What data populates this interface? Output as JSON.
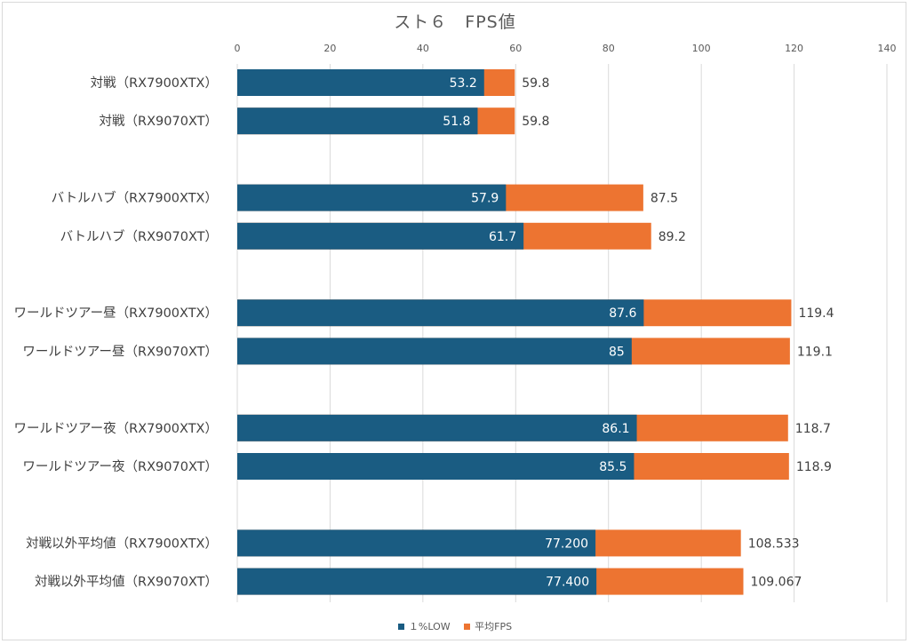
{
  "chart_data": {
    "type": "bar",
    "orientation": "horizontal",
    "stacked": false,
    "overlapped": true,
    "title": "スト６　FPS値",
    "xlabel": "",
    "ylabel": "",
    "xlim": [
      0,
      140
    ],
    "x_ticks": [
      "0",
      "20",
      "40",
      "60",
      "80",
      "100",
      "120",
      "140"
    ],
    "x_tick_values": [
      0,
      20,
      40,
      60,
      80,
      100,
      120,
      140
    ],
    "grid": true,
    "legend_position": "bottom",
    "categories": [
      "対戦（RX7900XTX）",
      "対戦（RX9070XT）",
      "",
      "バトルハブ（RX7900XTX）",
      "バトルハブ（RX9070XT）",
      "",
      "ワールドツアー昼（RX7900XTX）",
      "ワールドツアー昼（RX9070XT）",
      "",
      "ワールドツアー夜（RX7900XTX）",
      "ワールドツアー夜（RX9070XT）",
      "",
      "対戦以外平均値（RX7900XTX）",
      "対戦以外平均値（RX9070XT）"
    ],
    "series": [
      {
        "name": "平均FPS",
        "color": "#ED7431",
        "values": [
          59.8,
          59.8,
          null,
          87.5,
          89.2,
          null,
          119.4,
          119.1,
          null,
          118.7,
          118.9,
          null,
          108.533,
          109.067
        ],
        "labels": [
          "59.8",
          "59.8",
          "",
          "87.5",
          "89.2",
          "",
          "119.4",
          "119.1",
          "",
          "118.7",
          "118.9",
          "",
          "108.533",
          "109.067"
        ]
      },
      {
        "name": "１%LOW",
        "color": "#1A5C82",
        "values": [
          53.2,
          51.8,
          null,
          57.9,
          61.7,
          null,
          87.6,
          85,
          null,
          86.1,
          85.5,
          null,
          77.2,
          77.4
        ],
        "labels": [
          "53.2",
          "51.8",
          "",
          "57.9",
          "61.7",
          "",
          "87.6",
          "85",
          "",
          "86.1",
          "85.5",
          "",
          "77.200",
          "77.400"
        ]
      }
    ],
    "legend": [
      {
        "label": "１%LOW",
        "color": "#1A5C82"
      },
      {
        "label": "平均FPS",
        "color": "#ED7431"
      }
    ]
  },
  "colors": {
    "grid": "#d9d9d9",
    "text": "#404040"
  }
}
